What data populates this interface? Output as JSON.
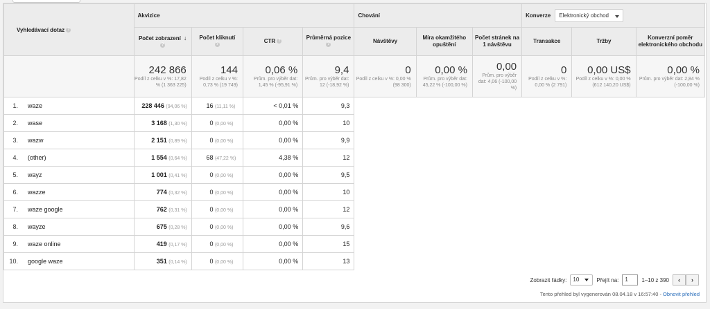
{
  "header": {
    "dimension_label": "Vyhledávací dotaz",
    "groups": {
      "akvizice": "Akvizice",
      "chovani": "Chování",
      "konverze": "Konverze"
    },
    "konverze_select": "Elektronický obchod",
    "columns": {
      "impressions": "Počet zobrazení",
      "clicks": "Počet kliknutí",
      "ctr": "CTR",
      "position": "Průměrná pozice",
      "visits": "Návštěvy",
      "bounce": "Míra okamžitého opuštění",
      "pages": "Počet stránek na 1 návštěvu",
      "transactions": "Transakce",
      "revenue": "Tržby",
      "conversion": "Konverzní poměr elektronického obchodu"
    }
  },
  "summary": {
    "impressions": {
      "value": "242 866",
      "sub": "Podíl z celku v %: 17,82 % (1 363 225)"
    },
    "clicks": {
      "value": "144",
      "sub": "Podíl z celku v %: 0,73 % (19 749)"
    },
    "ctr": {
      "value": "0,06 %",
      "sub": "Prům. pro výběr dat: 1,45 % (-95,91 %)"
    },
    "position": {
      "value": "9,4",
      "sub": "Prům. pro výběr dat: 12 (-18,92 %)"
    },
    "visits": {
      "value": "0",
      "sub": "Podíl z celku v %: 0,00 % (98 300)"
    },
    "bounce": {
      "value": "0,00 %",
      "sub": "Prům. pro výběr dat: 45,22 % (-100,00 %)"
    },
    "pages": {
      "value": "0,00",
      "sub": "Prům. pro výběr dat: 4,06 (-100,00 %)"
    },
    "transactions": {
      "value": "0",
      "sub": "Podíl z celku v %: 0,00 % (2 791)"
    },
    "revenue": {
      "value": "0,00 US$",
      "sub": "Podíl z celku v %: 0,00 % (612 140,20 US$)"
    },
    "conversion": {
      "value": "0,00 %",
      "sub": "Prům. pro výběr dat: 2,84 % (-100,00 %)"
    }
  },
  "rows": [
    {
      "idx": "1.",
      "query": "waze",
      "imp": "228 446",
      "imp_pct": "(94,06 %)",
      "clk": "16",
      "clk_pct": "(11,11 %)",
      "ctr": "< 0,01 %",
      "pos": "9,3"
    },
    {
      "idx": "2.",
      "query": "wase",
      "imp": "3 168",
      "imp_pct": "(1,30 %)",
      "clk": "0",
      "clk_pct": "(0,00 %)",
      "ctr": "0,00 %",
      "pos": "10"
    },
    {
      "idx": "3.",
      "query": "wazw",
      "imp": "2 151",
      "imp_pct": "(0,89 %)",
      "clk": "0",
      "clk_pct": "(0,00 %)",
      "ctr": "0,00 %",
      "pos": "9,9"
    },
    {
      "idx": "4.",
      "query": "(other)",
      "imp": "1 554",
      "imp_pct": "(0,64 %)",
      "clk": "68",
      "clk_pct": "(47,22 %)",
      "ctr": "4,38 %",
      "pos": "12"
    },
    {
      "idx": "5.",
      "query": "wayz",
      "imp": "1 001",
      "imp_pct": "(0,41 %)",
      "clk": "0",
      "clk_pct": "(0,00 %)",
      "ctr": "0,00 %",
      "pos": "9,5"
    },
    {
      "idx": "6.",
      "query": "wazze",
      "imp": "774",
      "imp_pct": "(0,32 %)",
      "clk": "0",
      "clk_pct": "(0,00 %)",
      "ctr": "0,00 %",
      "pos": "10"
    },
    {
      "idx": "7.",
      "query": "waze google",
      "imp": "762",
      "imp_pct": "(0,31 %)",
      "clk": "0",
      "clk_pct": "(0,00 %)",
      "ctr": "0,00 %",
      "pos": "12"
    },
    {
      "idx": "8.",
      "query": "wayze",
      "imp": "675",
      "imp_pct": "(0,28 %)",
      "clk": "0",
      "clk_pct": "(0,00 %)",
      "ctr": "0,00 %",
      "pos": "9,6"
    },
    {
      "idx": "9.",
      "query": "waze online",
      "imp": "419",
      "imp_pct": "(0,17 %)",
      "clk": "0",
      "clk_pct": "(0,00 %)",
      "ctr": "0,00 %",
      "pos": "15"
    },
    {
      "idx": "10.",
      "query": "google waze",
      "imp": "351",
      "imp_pct": "(0,14 %)",
      "clk": "0",
      "clk_pct": "(0,00 %)",
      "ctr": "0,00 %",
      "pos": "13"
    }
  ],
  "pager": {
    "rows_label": "Zobrazit řádky:",
    "rows_value": "10",
    "goto_label": "Přejít na:",
    "goto_value": "1",
    "range": "1–10 z 390",
    "prev": "‹",
    "next": "›"
  },
  "footer": {
    "generated": "Tento přehled byl vygenerován 08.04.18 v 16:57:40 - ",
    "refresh": "Obnovit přehled"
  }
}
